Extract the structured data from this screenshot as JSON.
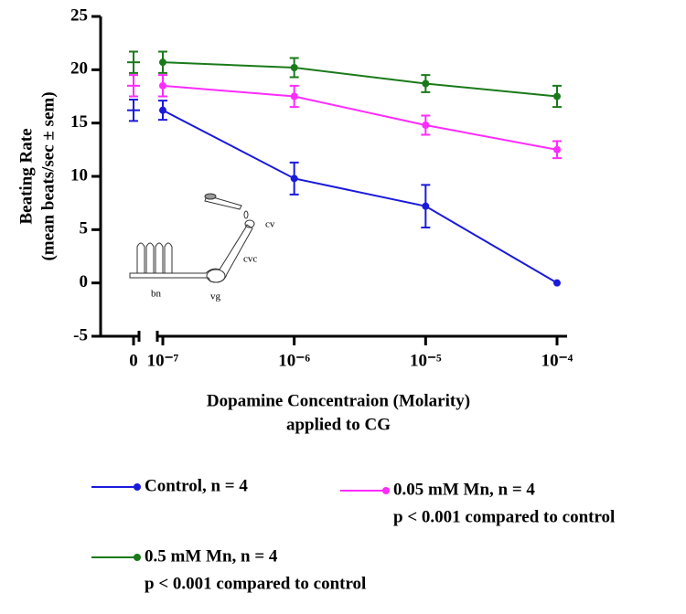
{
  "chart_data": {
    "type": "line",
    "x_label": "Dopamine Concentraion (Molarity)",
    "x_label_2": "applied to CG",
    "y_label": "Beating Rate",
    "y_label_2": "(mean beats/sec ± sem)",
    "x": [
      0,
      1e-07,
      1e-06,
      1e-05,
      0.0001
    ],
    "xscale": "log",
    "xticks": [
      {
        "value": 0,
        "label": "0"
      },
      {
        "value": 1e-07,
        "label": "10⁻⁷"
      },
      {
        "value": 1e-06,
        "label": "10⁻⁶"
      },
      {
        "value": 1e-05,
        "label": "10⁻⁵"
      },
      {
        "value": 0.0001,
        "label": "10⁻⁴"
      }
    ],
    "ylim": [
      -5,
      25
    ],
    "yticks": [
      -5,
      0,
      5,
      10,
      15,
      20,
      25
    ],
    "series": [
      {
        "name": "Control, n = 4",
        "color": "#1a1adb",
        "values": [
          16.2,
          16.2,
          9.8,
          7.2,
          0
        ],
        "errors": [
          1.0,
          0.9,
          1.5,
          2.0,
          0
        ]
      },
      {
        "name": "0.05 mM Mn, n = 4",
        "note": "p < 0.001 compared to control",
        "color": "#ff2bff",
        "values": [
          18.5,
          18.5,
          17.5,
          14.8,
          12.5
        ],
        "errors": [
          1.0,
          1.0,
          1.0,
          0.9,
          0.8
        ]
      },
      {
        "name": "0.5 mM Mn, n = 4",
        "note": "p < 0.001 compared to control",
        "color": "#1a7a1a",
        "values": [
          20.7,
          20.7,
          20.2,
          18.7,
          17.5
        ],
        "errors": [
          1.0,
          1.0,
          0.9,
          0.8,
          1.0
        ]
      }
    ],
    "inset_labels": [
      "bn",
      "vg",
      "cvc",
      "cv"
    ]
  }
}
